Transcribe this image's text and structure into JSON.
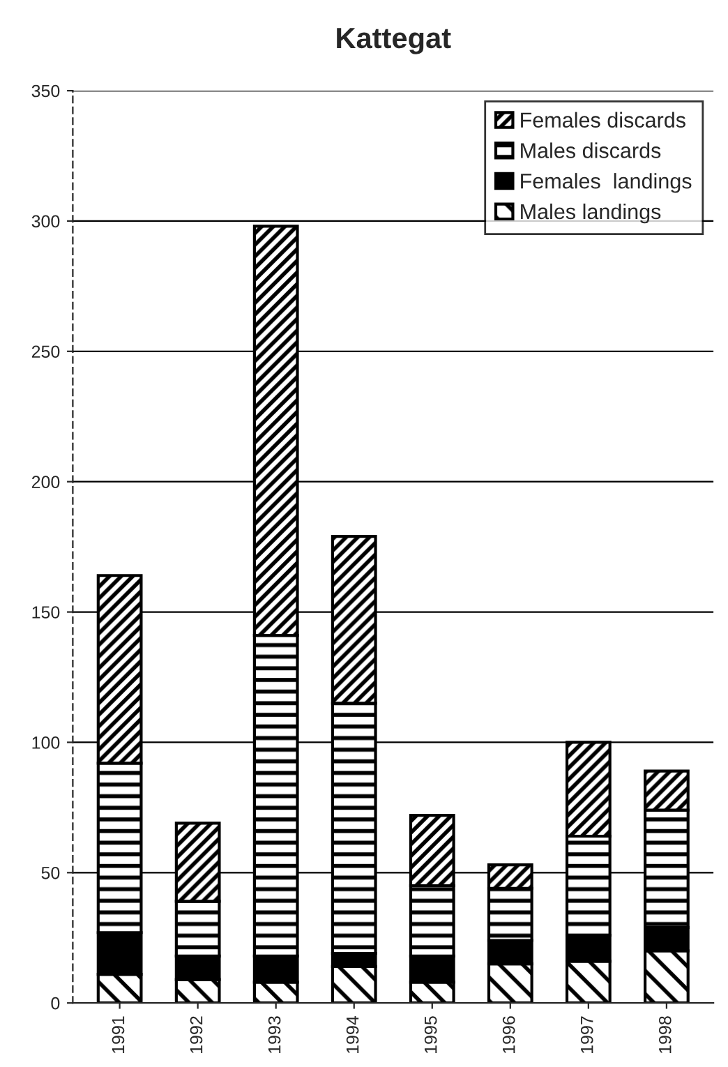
{
  "chart_data": {
    "type": "bar",
    "title": "Kattegat",
    "stacked": true,
    "categories": [
      "1991",
      "1992",
      "1993",
      "1994",
      "1995",
      "1996",
      "1997",
      "1998"
    ],
    "series": [
      {
        "name": "Males landings",
        "color": "#000000",
        "values": [
          11,
          9,
          8,
          14,
          8,
          15,
          16,
          20
        ]
      },
      {
        "name": "Females  landings",
        "color": "#000000",
        "values": [
          16,
          9,
          10,
          5,
          10,
          9,
          10,
          9
        ]
      },
      {
        "name": "Males discards",
        "color": "#000000",
        "values": [
          65,
          21,
          123,
          96,
          27,
          20,
          38,
          45
        ]
      },
      {
        "name": "Females discards",
        "color": "#000000",
        "values": [
          72,
          30,
          157,
          64,
          27,
          9,
          36,
          15
        ]
      }
    ],
    "ylim": [
      0,
      350
    ],
    "yticks": [
      0,
      50,
      100,
      150,
      200,
      250,
      300,
      350
    ],
    "grid": "y",
    "legend": "top right"
  }
}
